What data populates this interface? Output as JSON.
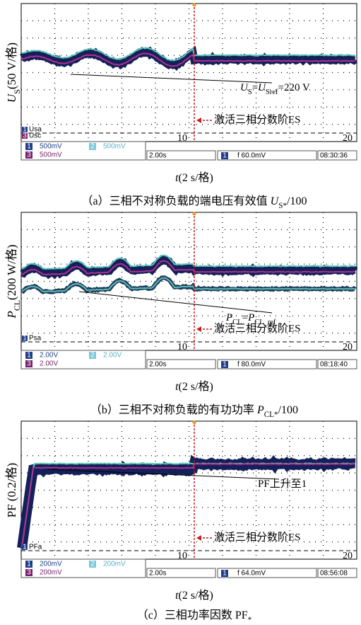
{
  "panels": [
    {
      "y_label": [
        {
          "text": "U",
          "italic": true
        },
        {
          "text": "S",
          "sub": true
        },
        {
          "text": "(50 V/格)"
        }
      ],
      "annotation": [
        {
          "text": "U",
          "italic": true
        },
        {
          "text": "S",
          "sub": true
        },
        {
          "text": "="
        },
        {
          "text": "U",
          "italic": true
        },
        {
          "text": "Sref",
          "sub": true
        },
        {
          "text": "=220 V"
        }
      ],
      "event": "激活三相分数阶ES",
      "channel_markers": [
        {
          "num": "1",
          "name": "Usa"
        },
        {
          "num": "3",
          "name": "Usc"
        }
      ],
      "marks": [
        "10",
        "20"
      ],
      "status": {
        "ch1": "1",
        "ch1_scale": "500mV",
        "ch2": "2",
        "ch2_scale": "500mV",
        "ch3": "3",
        "ch3_scale": "500mV",
        "time": "2.00s",
        "trig_ch": "1",
        "trigger": "f 60.0mV",
        "clock": "08:30:36"
      },
      "x_label": [
        {
          "text": "t",
          "italic": true
        },
        {
          "text": "(2 s/格)"
        }
      ],
      "caption": [
        {
          "text": "（a）三相不对称负载的端电压有效值 "
        },
        {
          "text": "U",
          "italic": true
        },
        {
          "text": "S*",
          "sub": true
        },
        {
          "text": "/100"
        }
      ]
    },
    {
      "y_label": [
        {
          "text": "P",
          "italic": true
        },
        {
          "text": "CL",
          "sub": true
        },
        {
          "text": "(200 W/格)"
        }
      ],
      "annotation": [
        {
          "text": "P",
          "italic": true
        },
        {
          "text": "CL",
          "sub": true
        },
        {
          "text": "="
        },
        {
          "text": "P",
          "italic": true
        },
        {
          "text": "CL_ref",
          "sub": true
        }
      ],
      "event": "激活三相分数阶ES",
      "channel_markers": [
        {
          "num": "1",
          "name": "Psa"
        }
      ],
      "marks": [
        "10",
        "20"
      ],
      "status": {
        "ch1": "1",
        "ch1_scale": "2.00V",
        "ch2": "2",
        "ch2_scale": "2.00V",
        "ch3": "3",
        "ch3_scale": "2.00V",
        "time": "2.00s",
        "trig_ch": "1",
        "trigger": "f 80.0mV",
        "clock": "08:18:40"
      },
      "x_label": [
        {
          "text": "t",
          "italic": true
        },
        {
          "text": "(2 s/格)"
        }
      ],
      "caption": [
        {
          "text": "（b）三相不对称负载的有功功率 "
        },
        {
          "text": "P",
          "italic": true
        },
        {
          "text": "CL*",
          "sub": true
        },
        {
          "text": "/100"
        }
      ]
    },
    {
      "y_label": [
        {
          "text": "PF (0.2/格)"
        }
      ],
      "annotation": [
        {
          "text": "PF上升至1"
        }
      ],
      "event": "激活三相分数阶ES",
      "channel_markers": [
        {
          "num": "1",
          "name": "PFa"
        }
      ],
      "marks": [
        "10",
        "20"
      ],
      "status": {
        "ch1": "1",
        "ch1_scale": "200mV",
        "ch2": "2",
        "ch2_scale": "200mV",
        "ch3": "3",
        "ch3_scale": "200mV",
        "time": "2.00s",
        "trig_ch": "1",
        "trigger": "f 64.0mV",
        "clock": "08:56:08"
      },
      "x_label": [
        {
          "text": "t",
          "italic": true
        },
        {
          "text": "(2 s/格)"
        }
      ],
      "caption": [
        {
          "text": "（c）三相功率因数 PF"
        },
        {
          "text": "*",
          "sub": true
        }
      ]
    }
  ]
}
